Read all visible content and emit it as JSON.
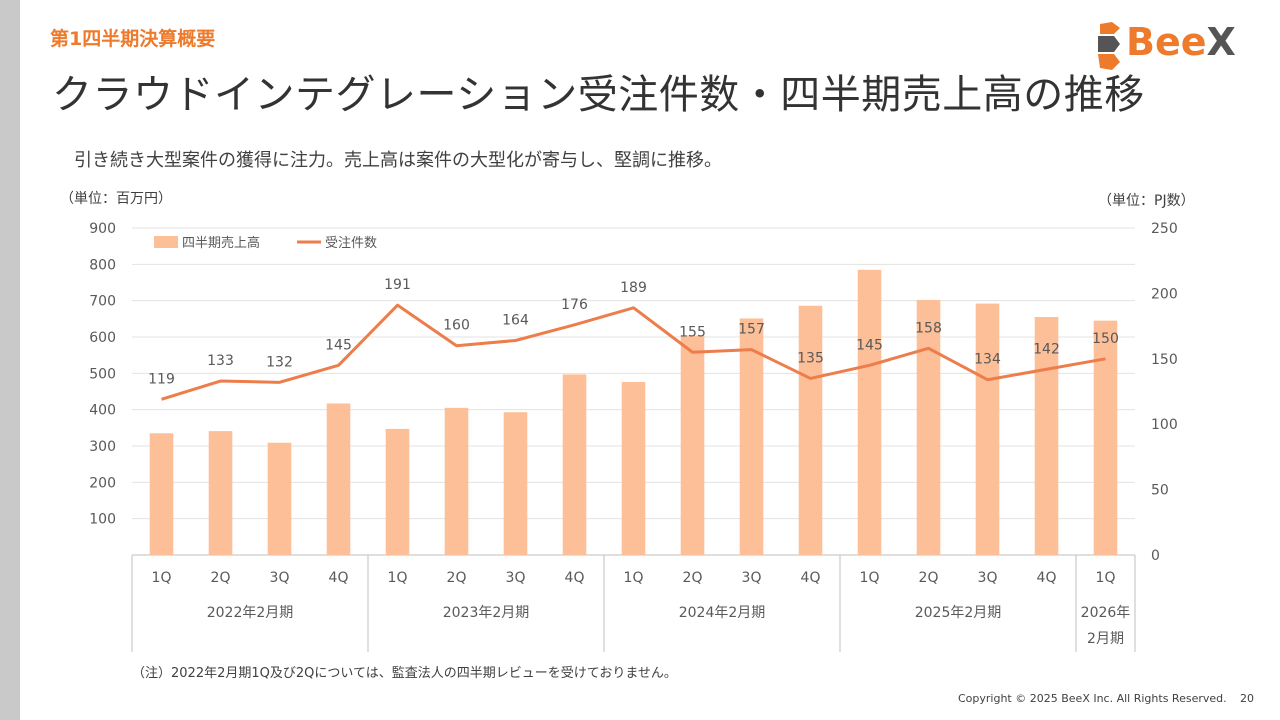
{
  "section_label": "第1四半期決算概要",
  "title": "クラウドインテグレーション受注件数・四半期売上高の推移",
  "subtitle": "引き続き大型案件の獲得に注力。売上高は案件の大型化が寄与し、堅調に推移。",
  "logo": {
    "text_main": "Bee",
    "text_x": "X",
    "colors": {
      "brand": "#ee7a2c",
      "dark": "#555555"
    }
  },
  "unit_left": "（単位：百万円）",
  "unit_right": "（単位：PJ数）",
  "footnote": "（注）2022年2月期1Q及び2Qについては、監査法人の四半期レビューを受けておりません。",
  "copyright": "Copyright © 2025 BeeX Inc. All Rights Reserved.",
  "page_number": "20",
  "colors": {
    "bar": "#fcbf97",
    "line": "#ed7d4a",
    "grid": "#e3e3e3",
    "axis": "#bfbfbf"
  },
  "chart_data": {
    "type": "bar",
    "categories": [
      "1Q",
      "2Q",
      "3Q",
      "4Q",
      "1Q",
      "2Q",
      "3Q",
      "4Q",
      "1Q",
      "2Q",
      "3Q",
      "4Q",
      "1Q",
      "2Q",
      "3Q",
      "4Q",
      "1Q"
    ],
    "groups": [
      {
        "label": "2022年2月期",
        "count": 4
      },
      {
        "label": "2023年2月期",
        "count": 4
      },
      {
        "label": "2024年2月期",
        "count": 4
      },
      {
        "label": "2025年2月期",
        "count": 4
      },
      {
        "label": "2026年\n2月期",
        "count": 1
      }
    ],
    "series": [
      {
        "name": "四半期売上高",
        "type": "bar",
        "axis": "left",
        "values": [
          335,
          341,
          309,
          417,
          347,
          405,
          393,
          497,
          476,
          604,
          651,
          686,
          785,
          702,
          692,
          655,
          645
        ]
      },
      {
        "name": "受注件数",
        "type": "line",
        "axis": "right",
        "values": [
          119,
          133,
          132,
          145,
          191,
          160,
          164,
          176,
          189,
          155,
          157,
          135,
          145,
          158,
          134,
          142,
          150
        ]
      }
    ],
    "ylim_left": [
      0,
      900
    ],
    "yticks_left": [
      "",
      "100",
      "200",
      "300",
      "400",
      "500",
      "600",
      "700",
      "800",
      "900"
    ],
    "ylim_right": [
      0,
      250
    ],
    "yticks_right": [
      "0",
      "50",
      "100",
      "150",
      "200",
      "250"
    ],
    "grid": true,
    "legend": "top-left"
  }
}
